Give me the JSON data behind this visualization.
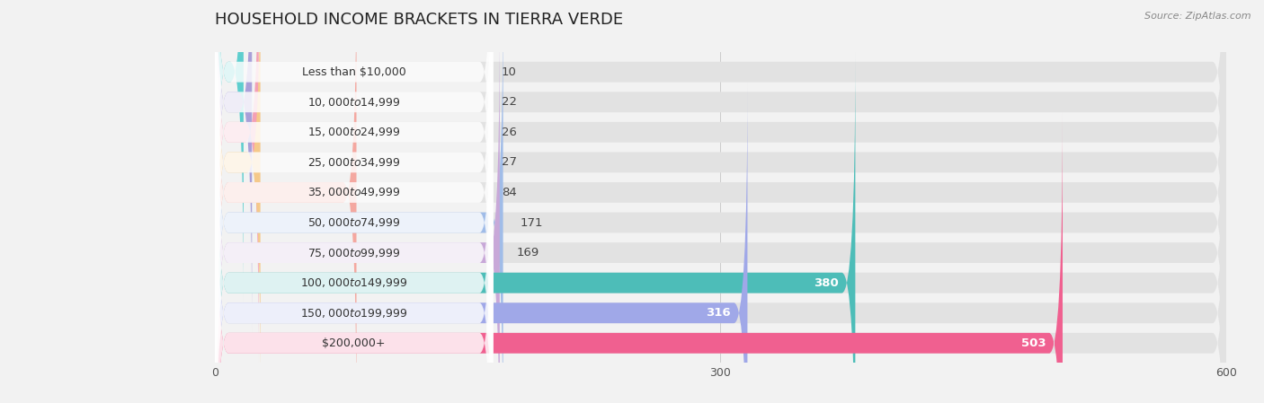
{
  "title": "HOUSEHOLD INCOME BRACKETS IN TIERRA VERDE",
  "source": "Source: ZipAtlas.com",
  "categories": [
    "Less than $10,000",
    "$10,000 to $14,999",
    "$15,000 to $24,999",
    "$25,000 to $34,999",
    "$35,000 to $49,999",
    "$50,000 to $74,999",
    "$75,000 to $99,999",
    "$100,000 to $149,999",
    "$150,000 to $199,999",
    "$200,000+"
  ],
  "values": [
    10,
    22,
    26,
    27,
    84,
    171,
    169,
    380,
    316,
    503
  ],
  "bar_colors": [
    "#5ecece",
    "#a89fd8",
    "#f4a0b5",
    "#f5c98a",
    "#f4a8a0",
    "#a0bce8",
    "#c8a8d8",
    "#4dbdb8",
    "#a0a8e8",
    "#f06090"
  ],
  "background_color": "#f2f2f2",
  "bar_bg_color": "#e2e2e2",
  "xlim": [
    0,
    600
  ],
  "xticks": [
    0,
    300,
    600
  ],
  "title_fontsize": 13,
  "label_fontsize": 9,
  "value_fontsize": 9.5
}
